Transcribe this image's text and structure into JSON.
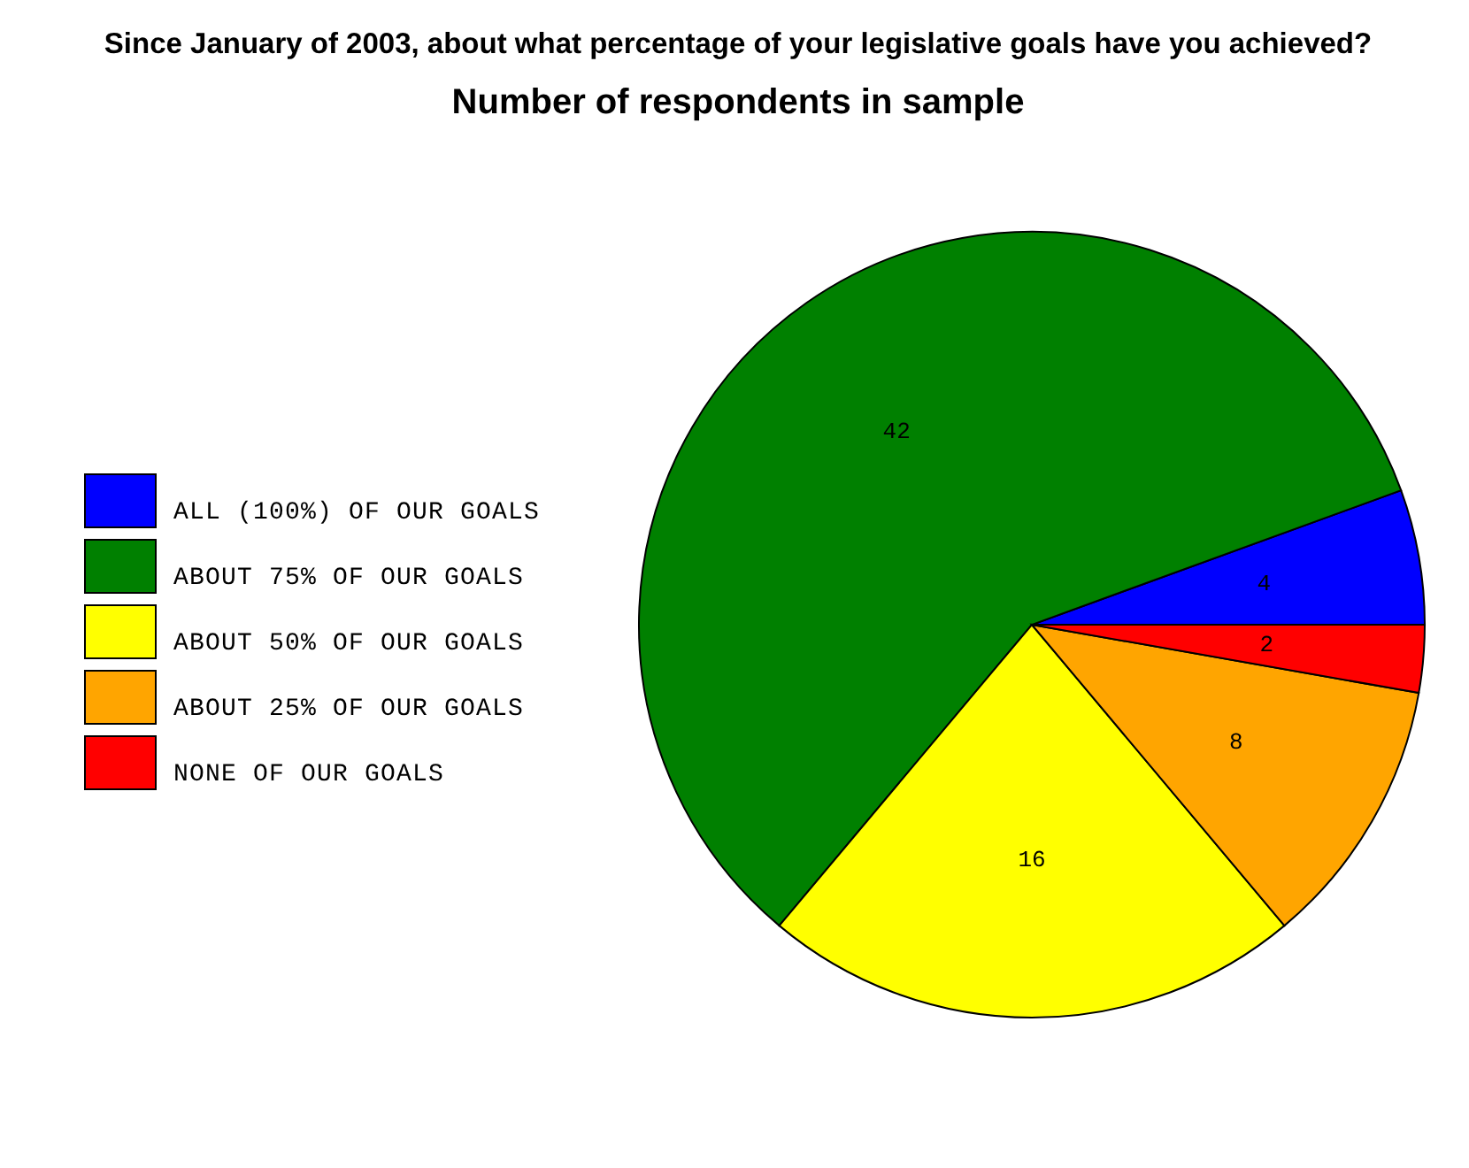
{
  "chart_data": {
    "type": "pie",
    "title": "Since January of 2003, about what percentage of your legislative goals have you achieved?",
    "subtitle": "Number of respondents in sample",
    "categories": [
      "ALL (100%) OF OUR GOALS",
      "ABOUT 75% OF OUR GOALS",
      "ABOUT 50% OF OUR GOALS",
      "ABOUT 25% OF OUR GOALS",
      "NONE OF OUR GOALS"
    ],
    "values": [
      4,
      42,
      16,
      8,
      2
    ],
    "colors": [
      "#0000ff",
      "#008000",
      "#ffff00",
      "#ffa500",
      "#ff0000"
    ],
    "data_labels": true,
    "legend": "left"
  }
}
